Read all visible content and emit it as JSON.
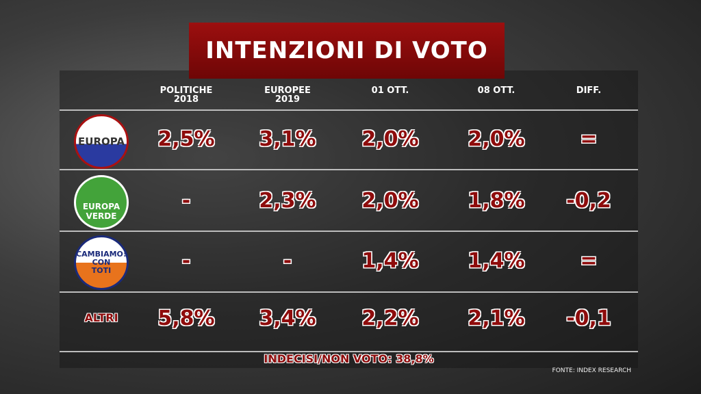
{
  "title": "INTENZIONI DI VOTO",
  "table": {
    "columns": [
      "POLITICHE\n2018",
      "EUROPEE\n2019",
      "01 OTT.",
      "08 OTT.",
      "DIFF."
    ],
    "rows": [
      {
        "label": "EUROPA",
        "cells": [
          "2,5%",
          "3,1%",
          "2,0%",
          "2,0%",
          "="
        ]
      },
      {
        "label": "EUROPA\nVERDE",
        "cells": [
          "-",
          "2,3%",
          "2,0%",
          "1,8%",
          "-0,2"
        ]
      },
      {
        "label": "CAMBIAMO!\nCON\nTOTI",
        "cells": [
          "-",
          "-",
          "1,4%",
          "1,4%",
          "="
        ]
      },
      {
        "label": "ALTRI",
        "cells": [
          "5,8%",
          "3,4%",
          "2,2%",
          "2,1%",
          "-0,1"
        ]
      }
    ]
  },
  "footer": {
    "note": "INDECISI/NON VOTO: 38,8%",
    "source": "FONTE: INDEX RESEARCH"
  }
}
